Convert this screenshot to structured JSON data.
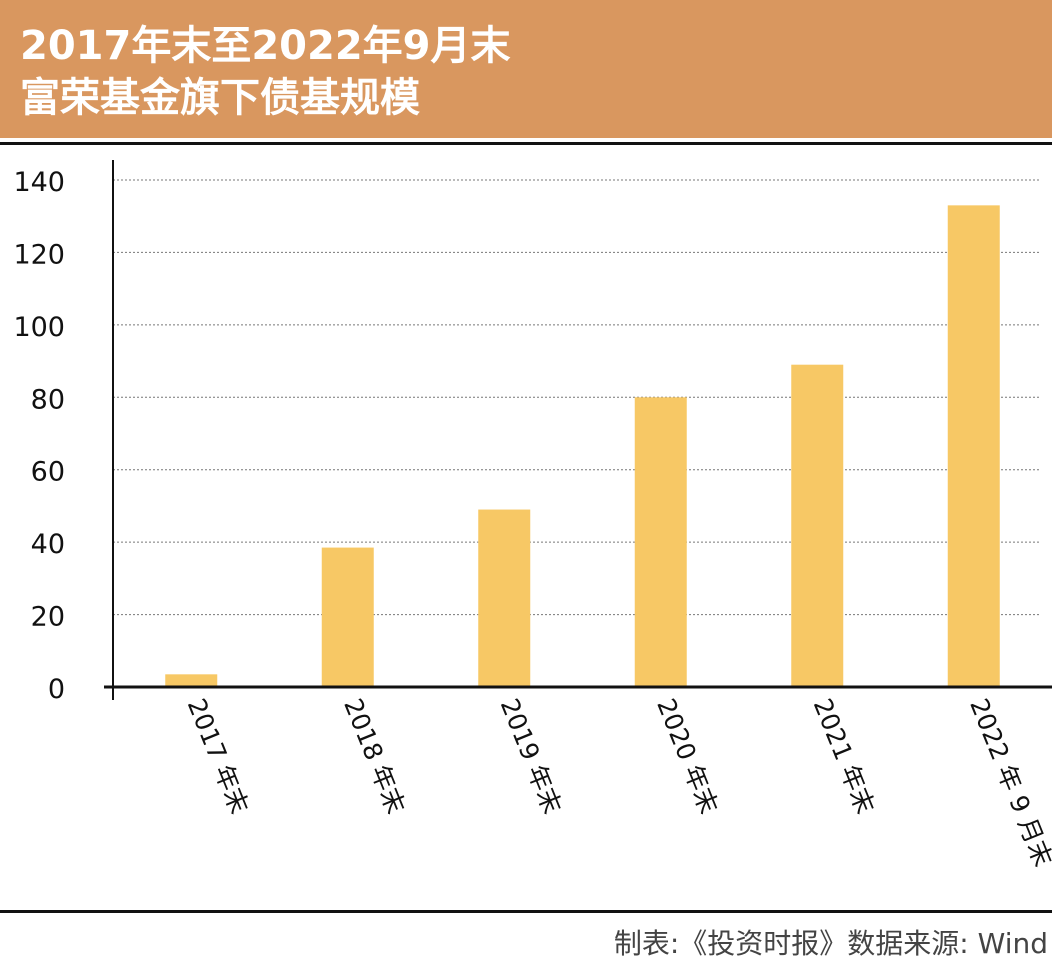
{
  "header": {
    "title_line1": "2017年末至2022年9月末",
    "title_line2": "富荣基金旗下债基规模"
  },
  "source": "制表:《投资时报》数据来源: Wind",
  "colors": {
    "header_bg": "#d9975f",
    "bar": "#f7c865",
    "axis": "#111111",
    "grid": "#777777"
  },
  "chart_data": {
    "type": "bar",
    "categories": [
      "2017 年末",
      "2018 年末",
      "2019 年末",
      "2020 年末",
      "2021 年末",
      "2022 年 9 月末"
    ],
    "values": [
      3.5,
      38.5,
      49,
      80,
      89,
      133
    ],
    "title": "2017年末至2022年9月末 富荣基金旗下债基规模",
    "xlabel": "",
    "ylabel": "",
    "ylim": [
      0,
      140
    ],
    "yticks": [
      0,
      20,
      40,
      60,
      80,
      100,
      120,
      140
    ],
    "grid": true
  }
}
